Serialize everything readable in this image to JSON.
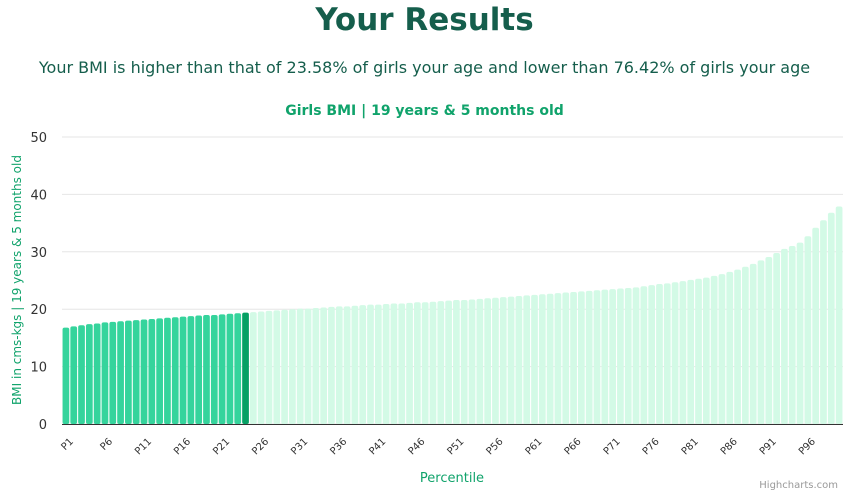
{
  "page": {
    "title": "Your Results",
    "subtitle": "Your BMI is higher than that of 23.58% of girls your age and lower than 76.42% of girls your age",
    "credits": "Highcharts.com"
  },
  "colors": {
    "heading": "#155e4c",
    "accent": "#10a36b",
    "bar_below": "#35d49c",
    "bar_highlight": "#06a064",
    "bar_above": "#d3fae6",
    "grid": "#e6e6e6",
    "axis_line": "#333333"
  },
  "chart_data": {
    "type": "bar",
    "title": "Girls BMI | 19 years & 5 months old",
    "xlabel": "Percentile",
    "ylabel": "BMI in cms-kgs | 19 years & 5 months old",
    "ylim": [
      0,
      50
    ],
    "yticks": [
      0,
      10,
      20,
      30,
      40,
      50
    ],
    "xtick_labels": [
      "P1",
      "P6",
      "P11",
      "P16",
      "P21",
      "P26",
      "P31",
      "P36",
      "P41",
      "P46",
      "P51",
      "P56",
      "P61",
      "P66",
      "P71",
      "P76",
      "P81",
      "P86",
      "P91",
      "P96"
    ],
    "grid": true,
    "legend": "none",
    "highlight_index": 23,
    "categories": [
      "P1",
      "P2",
      "P3",
      "P4",
      "P5",
      "P6",
      "P7",
      "P8",
      "P9",
      "P10",
      "P11",
      "P12",
      "P13",
      "P14",
      "P15",
      "P16",
      "P17",
      "P18",
      "P19",
      "P20",
      "P21",
      "P22",
      "P23",
      "P24",
      "P25",
      "P26",
      "P27",
      "P28",
      "P29",
      "P30",
      "P31",
      "P32",
      "P33",
      "P34",
      "P35",
      "P36",
      "P37",
      "P38",
      "P39",
      "P40",
      "P41",
      "P42",
      "P43",
      "P44",
      "P45",
      "P46",
      "P47",
      "P48",
      "P49",
      "P50",
      "P51",
      "P52",
      "P53",
      "P54",
      "P55",
      "P56",
      "P57",
      "P58",
      "P59",
      "P60",
      "P61",
      "P62",
      "P63",
      "P64",
      "P65",
      "P66",
      "P67",
      "P68",
      "P69",
      "P70",
      "P71",
      "P72",
      "P73",
      "P74",
      "P75",
      "P76",
      "P77",
      "P78",
      "P79",
      "P80",
      "P81",
      "P82",
      "P83",
      "P84",
      "P85",
      "P86",
      "P87",
      "P88",
      "P89",
      "P90",
      "P91",
      "P92",
      "P93",
      "P94",
      "P95",
      "P96",
      "P97",
      "P98",
      "P99",
      "P100"
    ],
    "values": [
      16.8,
      17.0,
      17.2,
      17.4,
      17.5,
      17.7,
      17.8,
      17.9,
      18.0,
      18.1,
      18.2,
      18.3,
      18.4,
      18.5,
      18.6,
      18.7,
      18.8,
      18.9,
      19.0,
      19.0,
      19.1,
      19.2,
      19.3,
      19.4,
      19.5,
      19.6,
      19.7,
      19.8,
      19.9,
      20.0,
      20.1,
      20.1,
      20.2,
      20.3,
      20.4,
      20.5,
      20.5,
      20.6,
      20.7,
      20.8,
      20.8,
      20.9,
      21.0,
      21.0,
      21.1,
      21.2,
      21.2,
      21.3,
      21.4,
      21.5,
      21.6,
      21.6,
      21.7,
      21.8,
      21.9,
      22.0,
      22.1,
      22.2,
      22.3,
      22.4,
      22.5,
      22.6,
      22.7,
      22.8,
      22.9,
      23.0,
      23.1,
      23.2,
      23.3,
      23.4,
      23.5,
      23.6,
      23.7,
      23.8,
      24.0,
      24.2,
      24.4,
      24.5,
      24.7,
      24.9,
      25.1,
      25.3,
      25.5,
      25.8,
      26.1,
      26.5,
      26.9,
      27.4,
      27.9,
      28.5,
      29.1,
      29.8,
      30.5,
      31.0,
      31.6,
      32.7,
      34.2,
      35.5,
      36.8,
      37.9
    ]
  }
}
